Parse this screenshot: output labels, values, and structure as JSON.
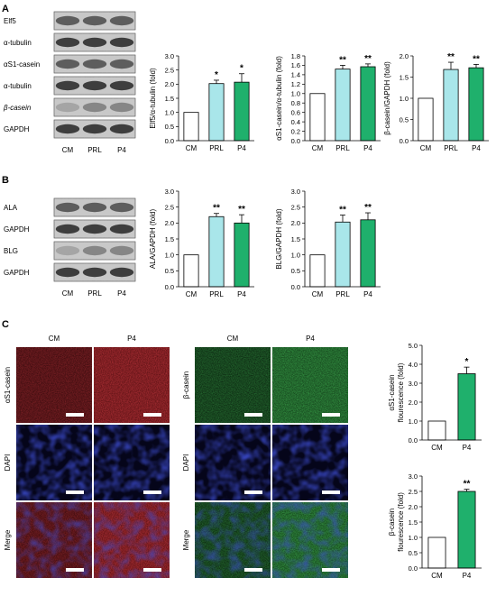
{
  "panel_letters": [
    "A",
    "B",
    "C"
  ],
  "colors": {
    "cm": "#ffffff",
    "prl": "#a9e6ea",
    "p4": "#1fb06c",
    "axis": "#000000"
  },
  "blot_lanes": [
    "CM",
    "PRL",
    "P4"
  ],
  "blots": {
    "a": [
      {
        "label": "Elf5",
        "tone": "mid"
      },
      {
        "label": "α-tubulin",
        "tone": "dark"
      },
      {
        "label": "αS1-casein",
        "tone": "mid"
      },
      {
        "label": "α-tubulin",
        "tone": "dark"
      },
      {
        "label": "β-casein",
        "tone": "light"
      },
      {
        "label": "GAPDH",
        "tone": "dark"
      }
    ],
    "b": [
      {
        "label": "ALA",
        "tone": "mid"
      },
      {
        "label": "GAPDH",
        "tone": "dark"
      },
      {
        "label": "BLG",
        "tone": "light"
      },
      {
        "label": "GAPDH",
        "tone": "dark"
      }
    ]
  },
  "chart_data": [
    {
      "type": "bar",
      "id": "elf5",
      "ylabel": "Elf5/α-tubulin (fold)",
      "categories": [
        "CM",
        "PRL",
        "P4"
      ],
      "values": [
        1.0,
        2.02,
        2.07
      ],
      "errors": [
        0,
        0.12,
        0.3
      ],
      "sig": [
        "",
        "*",
        "*"
      ],
      "ylim": [
        0,
        3.0
      ],
      "yticks": [
        "0.0",
        "0.5",
        "1.0",
        "1.5",
        "2.0",
        "2.5",
        "3.0"
      ]
    },
    {
      "type": "bar",
      "id": "as1",
      "ylabel": "αS1-casein/α-tubulin (fold)",
      "categories": [
        "CM",
        "PRL",
        "P4"
      ],
      "values": [
        1.0,
        1.52,
        1.57
      ],
      "errors": [
        0,
        0.08,
        0.06
      ],
      "sig": [
        "",
        "**",
        "**"
      ],
      "ylim": [
        0,
        1.8
      ],
      "yticks": [
        "0.0",
        "0.2",
        "0.4",
        "0.6",
        "0.8",
        "1.0",
        "1.2",
        "1.4",
        "1.6",
        "1.8"
      ]
    },
    {
      "type": "bar",
      "id": "bcas",
      "ylabel": "β-casein/GAPDH (fold)",
      "categories": [
        "CM",
        "PRL",
        "P4"
      ],
      "values": [
        1.0,
        1.68,
        1.72
      ],
      "errors": [
        0,
        0.17,
        0.08
      ],
      "sig": [
        "",
        "**",
        "**"
      ],
      "ylim": [
        0,
        2.0
      ],
      "yticks": [
        "0.0",
        "0.5",
        "1.0",
        "1.5",
        "2.0"
      ]
    },
    {
      "type": "bar",
      "id": "ala",
      "ylabel": "ALA/GAPDH (fold)",
      "categories": [
        "CM",
        "PRL",
        "P4"
      ],
      "values": [
        1.0,
        2.2,
        2.0
      ],
      "errors": [
        0,
        0.1,
        0.26
      ],
      "sig": [
        "",
        "**",
        "**"
      ],
      "ylim": [
        0,
        3.0
      ],
      "yticks": [
        "0.0",
        "0.5",
        "1.0",
        "1.5",
        "2.0",
        "2.5",
        "3.0"
      ]
    },
    {
      "type": "bar",
      "id": "blg",
      "ylabel": "BLG/GAPDH (fold)",
      "categories": [
        "CM",
        "PRL",
        "P4"
      ],
      "values": [
        1.0,
        2.03,
        2.1
      ],
      "errors": [
        0,
        0.22,
        0.22
      ],
      "sig": [
        "",
        "**",
        "**"
      ],
      "ylim": [
        0,
        3.0
      ],
      "yticks": [
        "0.0",
        "0.5",
        "1.0",
        "1.5",
        "2.0",
        "2.5",
        "3.0"
      ]
    },
    {
      "type": "bar",
      "id": "as1flu",
      "ylabel": "αS1-casein flourescence (fold)",
      "categories": [
        "CM",
        "P4"
      ],
      "values": [
        1.0,
        3.5
      ],
      "errors": [
        0,
        0.35
      ],
      "sig": [
        "",
        "*"
      ],
      "ylim": [
        0,
        5.0
      ],
      "yticks": [
        "0.0",
        "1.0",
        "2.0",
        "3.0",
        "4.0",
        "5.0"
      ]
    },
    {
      "type": "bar",
      "id": "bcflu",
      "ylabel": "β-casein flourescence (fold)",
      "categories": [
        "CM",
        "P4"
      ],
      "values": [
        1.0,
        2.5
      ],
      "errors": [
        0,
        0.07
      ],
      "sig": [
        "",
        "**"
      ],
      "ylim": [
        0,
        3.0
      ],
      "yticks": [
        "0.0",
        "0.5",
        "1.0",
        "1.5",
        "2.0",
        "2.5",
        "3.0"
      ]
    }
  ],
  "microscopy": {
    "left": {
      "cols": [
        "CM",
        "P4"
      ],
      "rows": [
        "αS1-casein",
        "DAPI",
        "Merge"
      ]
    },
    "right": {
      "cols": [
        "CM",
        "P4"
      ],
      "rows": [
        "β-casein",
        "DAPI",
        "Merge"
      ]
    }
  }
}
